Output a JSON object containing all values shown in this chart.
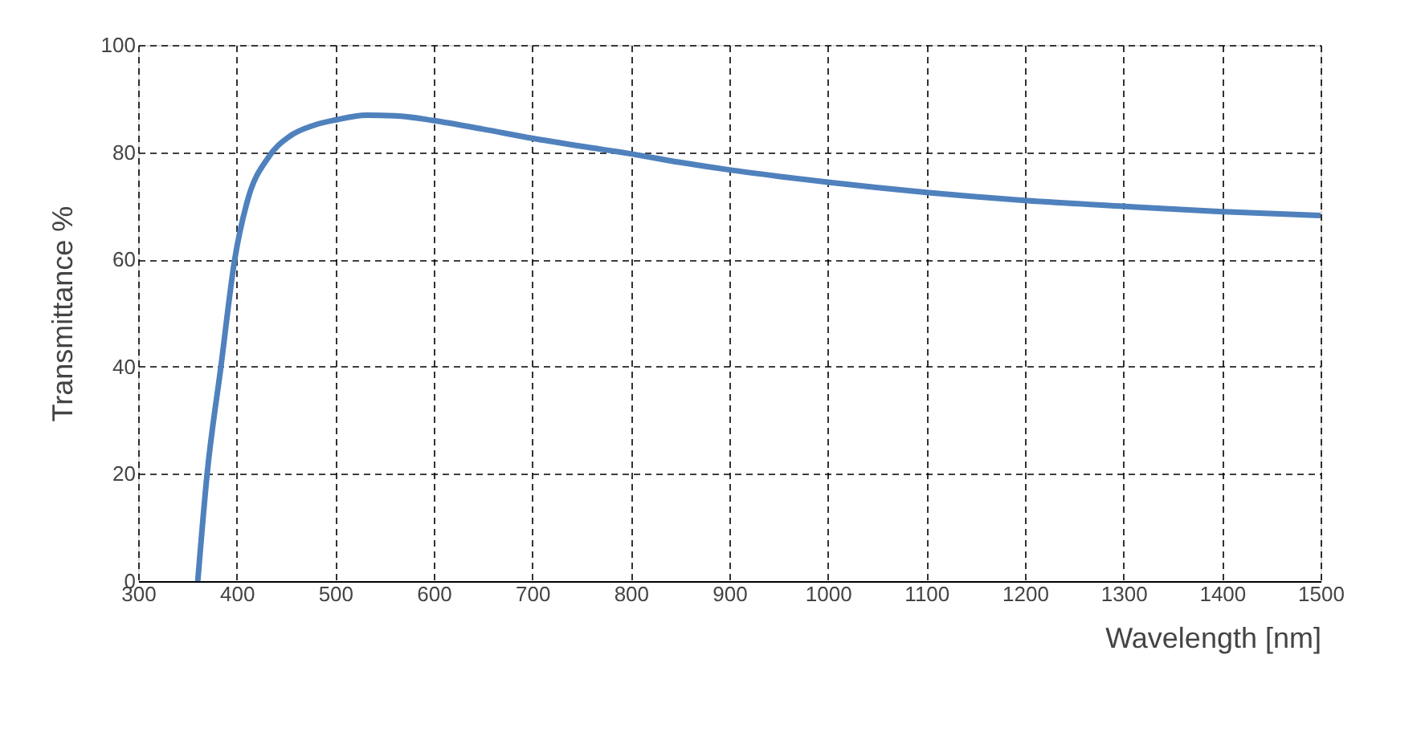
{
  "chart_data": {
    "type": "line",
    "xlabel": "Wavelength [nm]",
    "ylabel": "Transmittance %",
    "x": [
      360.5,
      370,
      384,
      398,
      411,
      432,
      454,
      478,
      500,
      532,
      560,
      600,
      650,
      700,
      750,
      800,
      850,
      900,
      950,
      1000,
      1100,
      1200,
      1300,
      1400,
      1500
    ],
    "series": [
      {
        "color": "#4f81bd",
        "values": [
          0,
          20,
          40,
          60,
          71,
          79,
          83,
          85,
          86,
          86.9,
          86.8,
          85.9,
          84.3,
          82.6,
          81.1,
          79.7,
          78.1,
          76.7,
          75.5,
          74.4,
          72.5,
          71,
          69.9,
          68.9,
          68.2
        ]
      }
    ],
    "xlim": [
      300,
      1500
    ],
    "xticks": [
      300,
      400,
      500,
      600,
      700,
      800,
      900,
      1000,
      1100,
      1200,
      1300,
      1400,
      1500
    ],
    "ylim": [
      0,
      100
    ],
    "yticks": [
      0,
      20,
      40,
      60,
      80,
      100
    ],
    "grid": true,
    "line_style": "solid",
    "marker": "none"
  }
}
